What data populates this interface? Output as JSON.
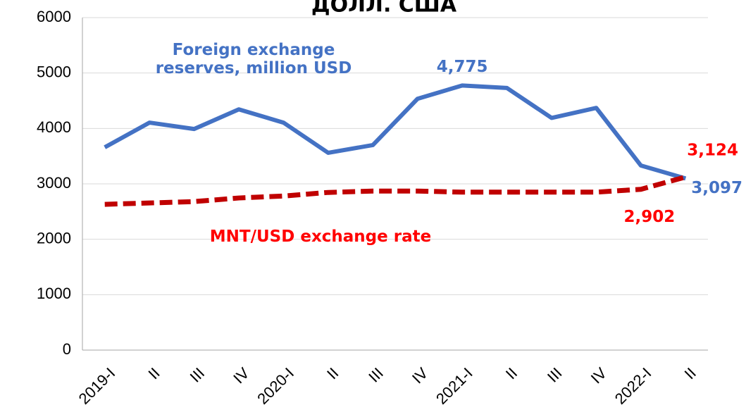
{
  "chart_data": {
    "type": "line",
    "title": "ДОЛЛ. США",
    "categories": [
      "2019-I",
      "II",
      "III",
      "IV",
      "2020-I",
      "II",
      "III",
      "IV",
      "2021-I",
      "II",
      "III",
      "IV",
      "2022-I",
      "II"
    ],
    "series": [
      {
        "name": "Foreign exchange reserves, million USD",
        "color": "#4472c4",
        "dash": false,
        "values": [
          3660,
          4105,
          3990,
          4345,
          4105,
          3560,
          3700,
          4535,
          4775,
          4730,
          4190,
          4370,
          3330,
          3097
        ],
        "value_labels": [
          null,
          null,
          null,
          null,
          null,
          null,
          null,
          null,
          "4,775",
          null,
          null,
          null,
          null,
          "3,097"
        ]
      },
      {
        "name": "MNT/USD exchange rate",
        "color": "#c00000",
        "dash": true,
        "label_color": "#ff0000",
        "values": [
          2630,
          2655,
          2680,
          2745,
          2780,
          2845,
          2870,
          2870,
          2850,
          2850,
          2850,
          2850,
          2902,
          3124
        ],
        "value_labels": [
          null,
          null,
          null,
          null,
          null,
          null,
          null,
          null,
          null,
          null,
          null,
          null,
          "2,902",
          "3,124"
        ]
      }
    ],
    "ylim": [
      0,
      6000
    ],
    "yticks": [
      0,
      1000,
      2000,
      3000,
      4000,
      5000,
      6000
    ],
    "grid": true
  }
}
